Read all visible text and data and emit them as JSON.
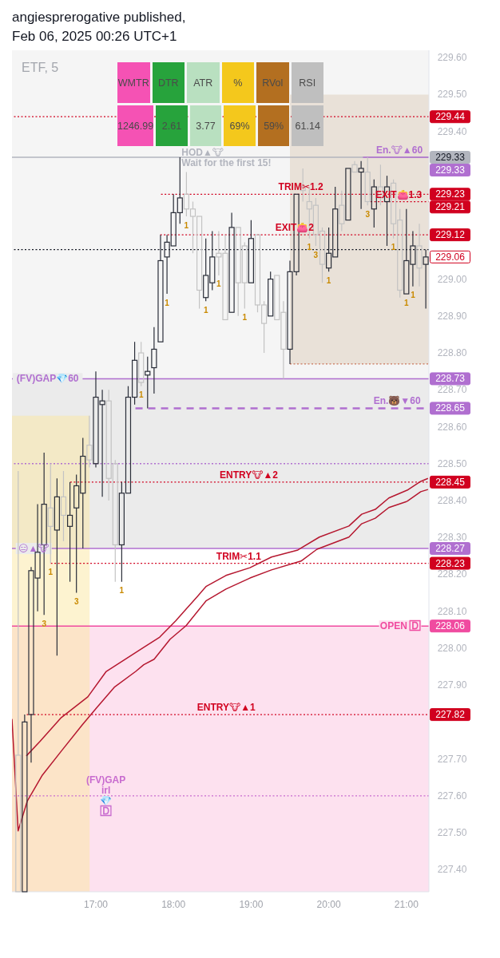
{
  "chart_data": [
    {
      "type": "candlestick",
      "title": "angiesprerogative published,",
      "subtitle": "Feb 06, 2025 00:26 UTC+1",
      "x": [
        16,
        16.0833,
        16.1667,
        16.25,
        16.3333,
        16.4167,
        16.5,
        16.5833,
        16.6667,
        16.75,
        16.8333,
        16.9167,
        17,
        17.0833,
        17.1667,
        17.25,
        17.3333,
        17.4167,
        17.5,
        17.5833,
        17.6667,
        17.75,
        17.8333,
        17.9167,
        18,
        18.0833,
        18.1667,
        18.25,
        18.3333,
        18.4167,
        18.5,
        18.5833,
        18.6667,
        18.75,
        18.8333,
        18.9167,
        19,
        19.0833,
        19.1667,
        19.25,
        19.3333,
        19.4167,
        19.5,
        19.5833,
        19.6667,
        19.75,
        19.8333,
        19.9167,
        20,
        20.0833,
        20.1667,
        20.25,
        20.3333,
        20.4167,
        20.5,
        20.5833,
        20.6667,
        20.75,
        20.8333,
        20.9167,
        21,
        21.0833,
        21.1667,
        21.25
      ],
      "ohlc": [
        [
          227.71,
          228.48,
          227.34,
          227.34
        ],
        [
          227.34,
          227.82,
          227.34,
          227.8
        ],
        [
          227.82,
          228.22,
          227.69,
          228.21
        ],
        [
          228.19,
          228.39,
          228.1,
          228.26
        ],
        [
          228.28,
          228.53,
          228.09,
          228.39
        ],
        [
          228.38,
          228.5,
          228.23,
          228.33
        ],
        [
          228.32,
          228.46,
          227.98,
          228.41
        ],
        [
          228.41,
          228.48,
          228.29,
          228.36
        ],
        [
          228.33,
          228.45,
          228.18,
          228.36
        ],
        [
          228.38,
          228.47,
          228.15,
          228.44
        ],
        [
          228.42,
          228.57,
          228.27,
          228.52
        ],
        [
          228.55,
          228.63,
          228.49,
          228.51
        ],
        [
          228.5,
          228.75,
          228.49,
          228.68
        ],
        [
          228.66,
          228.7,
          228.41,
          228.67
        ],
        [
          228.67,
          228.7,
          228.4,
          228.46
        ],
        [
          228.5,
          228.51,
          228.18,
          228.28
        ],
        [
          228.28,
          228.45,
          228.18,
          228.42
        ],
        [
          228.42,
          228.71,
          228.42,
          228.68
        ],
        [
          228.68,
          228.83,
          228.66,
          228.78
        ],
        [
          228.8,
          228.83,
          228.71,
          228.72
        ],
        [
          228.74,
          228.79,
          228.65,
          228.75
        ],
        [
          228.76,
          228.87,
          228.69,
          228.81
        ],
        [
          228.83,
          229.12,
          228.83,
          229.05
        ],
        [
          229.06,
          229.12,
          228.96,
          229.1
        ],
        [
          229.09,
          229.23,
          229.09,
          229.18
        ],
        [
          229.18,
          229.33,
          229.15,
          229.22
        ],
        [
          229.23,
          229.29,
          229.17,
          229.19
        ],
        [
          229.19,
          229.21,
          229.07,
          229.17
        ],
        [
          229.17,
          229.17,
          228.92,
          228.97
        ],
        [
          228.95,
          229.11,
          228.94,
          229.01
        ],
        [
          228.99,
          229.13,
          228.97,
          229.06
        ],
        [
          229.07,
          229.13,
          229.01,
          229.06
        ],
        [
          229.07,
          229.12,
          228.89,
          228.89
        ],
        [
          228.91,
          229.18,
          228.91,
          229.14
        ],
        [
          229.14,
          229.14,
          228.9,
          228.99
        ],
        [
          229.09,
          229.1,
          228.92,
          228.99
        ],
        [
          228.99,
          229.16,
          228.99,
          229.11
        ],
        [
          229.12,
          229.12,
          228.91,
          228.93
        ],
        [
          228.93,
          228.94,
          228.8,
          228.88
        ],
        [
          228.9,
          229.02,
          228.9,
          229
        ],
        [
          229.01,
          229.01,
          228.89,
          228.89
        ],
        [
          228.91,
          228.94,
          228.73,
          228.81
        ],
        [
          228.81,
          229.05,
          228.77,
          229.02
        ],
        [
          229.02,
          229.23,
          229.01,
          229.23
        ],
        [
          229.25,
          229.3,
          229.21,
          229.24
        ],
        [
          229.21,
          229.25,
          229.11,
          229.19
        ],
        [
          229.2,
          229.22,
          229.09,
          229.12
        ],
        [
          229.13,
          229.14,
          228.99,
          229.04
        ],
        [
          229.03,
          229.14,
          229.02,
          229.07
        ],
        [
          229.06,
          229.25,
          229.06,
          229.19
        ],
        [
          229.2,
          229.24,
          229.13,
          229.15
        ],
        [
          229.16,
          229.3,
          229.16,
          229.3
        ],
        [
          229.31,
          229.32,
          229.29,
          229.29
        ],
        [
          229.29,
          229.32,
          229.19,
          229.3
        ],
        [
          229.29,
          229.33,
          229.2,
          229.21
        ],
        [
          229.19,
          229.27,
          229.14,
          229.25
        ],
        [
          229.25,
          229.31,
          229.2,
          229.22
        ],
        [
          229.21,
          229.28,
          229.09,
          229.25
        ],
        [
          229.26,
          229.27,
          229.11,
          229.15
        ],
        [
          229.16,
          229.19,
          228.95,
          228.97
        ],
        [
          228.96,
          229.19,
          228.96,
          229.05
        ],
        [
          229.04,
          229.13,
          228.98,
          229.09
        ],
        [
          229.09,
          229.15,
          228.98,
          229.03
        ],
        [
          229.04,
          229.08,
          228.92,
          229.06
        ]
      ],
      "colors": [
        "#c3c3c3",
        "#2a2e39",
        "#2a2e39",
        "#2a2e39",
        "#2a2e39",
        "#c3c3c3",
        "#2a2e39",
        "#c3c3c3",
        "#2a2e39",
        "#2a2e39",
        "#2a2e39",
        "#c3c3c3",
        "#2a2e39",
        "#2a2e39",
        "#c3c3c3",
        "#c3c3c3",
        "#2a2e39",
        "#2a2e39",
        "#2a2e39",
        "#c3c3c3",
        "#2a2e39",
        "#2a2e39",
        "#2a2e39",
        "#2a2e39",
        "#2a2e39",
        "#2a2e39",
        "#c3c3c3",
        "#c3c3c3",
        "#c3c3c3",
        "#2a2e39",
        "#2a2e39",
        "#c3c3c3",
        "#c3c3c3",
        "#2a2e39",
        "#c3c3c3",
        "#c3c3c3",
        "#2a2e39",
        "#c3c3c3",
        "#c3c3c3",
        "#2a2e39",
        "#c3c3c3",
        "#c3c3c3",
        "#2a2e39",
        "#2a2e39",
        "#c3c3c3",
        "#c3c3c3",
        "#c3c3c3",
        "#c3c3c3",
        "#2a2e39",
        "#2a2e39",
        "#c3c3c3",
        "#2a2e39",
        "#c3c3c3",
        "#2a2e39",
        "#c3c3c3",
        "#2a2e39",
        "#c3c3c3",
        "#2a2e39",
        "#c3c3c3",
        "#c3c3c3",
        "#2a2e39",
        "#2a2e39",
        "#c3c3c3",
        "#2a2e39"
      ],
      "series": [
        {
          "type": "area",
          "color": "#fbe7a1",
          "x": [
            15.92,
            16.92
          ],
          "values": [
            228.63,
            228.63
          ]
        },
        {
          "type": "area",
          "color": "#d8c2ac",
          "x": [
            19.5,
            21.29
          ],
          "values": [
            null,
            null
          ],
          "lower": [
            228.77,
            228.77
          ],
          "upper": [
            229.5,
            229.5
          ]
        },
        {
          "type": "line",
          "color": "#c9765a",
          "line_style": "dotted",
          "x": [
            19.5,
            21.29
          ],
          "values": [
            228.77,
            228.77
          ]
        },
        {
          "type": "line",
          "color": "#b5172f",
          "x": [
            16.105,
            16.28,
            16.555,
            16.897,
            17.134,
            17.617,
            17.823,
            18.028,
            18.303,
            18.419,
            18.676,
            18.985,
            19.262,
            19.602,
            19.879,
            20.26,
            20.424,
            20.599,
            20.774,
            21.01,
            21.185,
            21.278
          ],
          "values": [
            227.708,
            227.747,
            227.812,
            227.868,
            227.937,
            228.002,
            228.03,
            228.074,
            228.139,
            228.167,
            228.197,
            228.218,
            228.247,
            228.266,
            228.301,
            228.331,
            228.363,
            228.376,
            228.407,
            228.428,
            228.452,
            228.46
          ]
        },
        {
          "type": "line",
          "color": "#b5172f",
          "x": [
            15.92,
            15.999,
            16.116,
            16.311,
            16.555,
            16.825,
            17,
            17.237,
            17.514,
            17.617,
            17.751,
            17.956,
            18.162,
            18.419,
            18.676,
            18.985,
            19.262,
            19.643,
            19.848,
            20.26,
            20.424,
            20.599,
            20.774,
            21.01,
            21.185,
            21.278
          ],
          "values": [
            227.808,
            227.505,
            227.585,
            227.656,
            227.721,
            227.792,
            227.836,
            227.894,
            227.937,
            227.955,
            227.97,
            228.024,
            228.061,
            228.128,
            228.16,
            228.19,
            228.212,
            228.236,
            228.268,
            228.301,
            228.337,
            228.352,
            228.381,
            228.398,
            228.424,
            228.43
          ]
        },
        {
          "type": "line",
          "color": "#b06fd0",
          "line_style": "solid",
          "x": [
            20.44,
            21.29
          ],
          "values": [
            229.33,
            229.33
          ],
          "value_labels": [
            null,
            "229.33"
          ]
        },
        {
          "type": "line",
          "color": "#d1001f",
          "line_style": "dotted",
          "x": [
            17.84,
            21.29
          ],
          "values": [
            229.23,
            229.23
          ],
          "value_labels": [
            null,
            "229.23"
          ]
        },
        {
          "type": "line",
          "color": "#d1001f",
          "line_style": "dotted",
          "x": [
            20.54,
            21.29
          ],
          "values": [
            229.21,
            229.21
          ],
          "value_labels": [
            null,
            "229.21"
          ]
        },
        {
          "type": "line",
          "color": "#d1001f",
          "line_style": "dotted",
          "x": [
            17.83,
            21.29
          ],
          "values": [
            229.12,
            229.12
          ],
          "value_labels": [
            null,
            "229.12"
          ]
        },
        {
          "type": "line",
          "color": "#b06fd0",
          "line_style": "dashed",
          "x": [
            17.51,
            21.29
          ],
          "values": [
            228.65,
            228.65
          ],
          "value_labels": [
            null,
            "228.65"
          ]
        },
        {
          "type": "line",
          "color": "#d1001f",
          "line_style": "dotted",
          "x": [
            16.67,
            21.29
          ],
          "values": [
            228.45,
            228.45
          ],
          "value_labels": [
            null,
            "228.45"
          ]
        },
        {
          "type": "line",
          "color": "#d1001f",
          "line_style": "dotted",
          "x": [
            16.42,
            21.29
          ],
          "values": [
            228.23,
            228.23
          ],
          "value_labels": [
            null,
            "228.23"
          ]
        },
        {
          "type": "line",
          "color": "#d1001f",
          "line_style": "dotted",
          "x": [
            16.11,
            21.29
          ],
          "values": [
            227.82,
            227.82
          ],
          "value_labels": [
            null,
            "227.82"
          ]
        }
      ],
      "ref_lines": [
        {
          "axis": "y",
          "value": 229.44,
          "label": "229.44",
          "color": "#d1001f",
          "line_style": "dotted"
        },
        {
          "axis": "y",
          "value": 229.33,
          "label": "229.33",
          "color": "#b2b5be",
          "line_style": "solid"
        },
        {
          "axis": "y",
          "value": 229.08,
          "color": "#131722",
          "line_style": "dotted"
        },
        {
          "axis": "y",
          "value": 228.73,
          "label": "228.73",
          "color": "#b06fd0",
          "line_style": "solid"
        },
        {
          "axis": "y",
          "value": 228.5,
          "color": "#b06fd0",
          "line_style": "dotted"
        },
        {
          "axis": "y",
          "value": 228.27,
          "label": "228.27",
          "color": "#b06fd0",
          "line_style": "solid"
        },
        {
          "axis": "y",
          "value": 228.06,
          "label": "228.06",
          "color": "#f04ba0",
          "line_style": "solid"
        },
        {
          "axis": "y",
          "value": 227.6,
          "color": "#c86bcf",
          "line_style": "dotted"
        }
      ],
      "bands": [
        {
          "axis": "y",
          "from": 228.73,
          "to": 229.62,
          "color": "#f5f5f5"
        },
        {
          "axis": "y",
          "from": 228.27,
          "to": 228.73,
          "color": "#ebebeb"
        },
        {
          "axis": "y",
          "from": 227.34,
          "to": 228.06,
          "color": "#fde1ef"
        }
      ],
      "annotations": [
        "ETF, 5",
        {
          "text": "HOD▲🐮\nWait for the first 15!",
          "x": 18.0833,
          "y": 229.33
        },
        {
          "text": "En.🐮▲60",
          "x": 20.91,
          "y": 229.33
        },
        {
          "text": "TRIM✂1.2",
          "x": 19.64,
          "y": 229.23
        },
        {
          "text": "EXIT👛1.3",
          "x": 20.9,
          "y": 229.21
        },
        {
          "text": "EXIT👛2",
          "x": 19.56,
          "y": 229.12
        },
        {
          "text": "229.06",
          "x": 21.25,
          "y": 229.06
        },
        {
          "text": "(FV)GAP💎60",
          "x": 16.38,
          "y": 228.73
        },
        {
          "text": "En.🐻▼60",
          "x": 20.88,
          "y": 228.65
        },
        {
          "text": "ENTRY🐮▲2",
          "x": 18.97,
          "y": 228.45
        },
        {
          "text": "😑▲🐮",
          "x": 16.2,
          "y": 228.27
        },
        {
          "text": "TRIM✂1.1",
          "x": 18.84,
          "y": 228.23
        },
        {
          "text": "OPEN 🄳",
          "x": 20.92,
          "y": 228.06
        },
        {
          "text": "ENTRY🐮▲1",
          "x": 18.68,
          "y": 227.82
        },
        {
          "text": "(FV)GAP\nirl\n💎\n🄳",
          "x": 17.13,
          "y": 227.6
        },
        {
          "text": "1",
          "x": 16.4167,
          "y": 228.23
        },
        {
          "text": "1",
          "x": 17.3333,
          "y": 228.18
        },
        {
          "text": "1",
          "x": 17.5833,
          "y": 228.71
        },
        {
          "text": "1",
          "x": 17.9167,
          "y": 228.96
        },
        {
          "text": "1",
          "x": 18.1667,
          "y": 229.17
        },
        {
          "text": "1",
          "x": 18.4167,
          "y": 228.94
        },
        {
          "text": "1",
          "x": 18.5833,
          "y": 229.01
        },
        {
          "text": "1",
          "x": 18.9167,
          "y": 228.92
        },
        {
          "text": "1",
          "x": 19.75,
          "y": 229.11
        },
        {
          "text": "1",
          "x": 20,
          "y": 229.02
        },
        {
          "text": "1",
          "x": 20.8333,
          "y": 229.11
        },
        {
          "text": "1",
          "x": 21,
          "y": 228.96
        },
        {
          "text": "1",
          "x": 21.0833,
          "y": 228.98
        },
        {
          "text": "3",
          "x": 16.3333,
          "y": 228.09
        },
        {
          "text": "3",
          "x": 16.75,
          "y": 228.15
        },
        {
          "text": "3",
          "x": 19.8333,
          "y": 229.09
        },
        {
          "text": "3",
          "x": 20.5,
          "y": 229.2
        }
      ],
      "xlim": [
        15.92,
        21.29
      ],
      "xticks": [
        {
          "value": 17,
          "label": "17:00"
        },
        {
          "value": 18,
          "label": "18:00"
        },
        {
          "value": 19,
          "label": "19:00"
        },
        {
          "value": 20,
          "label": "20:00"
        },
        {
          "value": 21,
          "label": "21:00"
        }
      ],
      "ylim": [
        227.34,
        229.62
      ],
      "yticks": [
        {
          "value": 229.6,
          "label": "229.60"
        },
        {
          "value": 229.5,
          "label": "229.50"
        },
        {
          "value": 229.4,
          "label": "229.40"
        },
        {
          "value": 229,
          "label": "229.00"
        },
        {
          "value": 228.9,
          "label": "228.90"
        },
        {
          "value": 228.8,
          "label": "228.80"
        },
        {
          "value": 228.7,
          "label": "228.70"
        },
        {
          "value": 228.6,
          "label": "228.60"
        },
        {
          "value": 228.5,
          "label": "228.50"
        },
        {
          "value": 228.4,
          "label": "228.40"
        },
        {
          "value": 228.3,
          "label": "228.30"
        },
        {
          "value": 228.2,
          "label": "228.20"
        },
        {
          "value": 228.1,
          "label": "228.10"
        },
        {
          "value": 228,
          "label": "228.00"
        },
        {
          "value": 227.9,
          "label": "227.90"
        },
        {
          "value": 227.7,
          "label": "227.70"
        },
        {
          "value": 227.6,
          "label": "227.60"
        },
        {
          "value": 227.5,
          "label": "227.50"
        },
        {
          "value": 227.4,
          "label": "227.40"
        }
      ]
    },
    {
      "type": "other",
      "categories": [
        "WMTR",
        "DTR",
        "ATR",
        "%",
        "RVol",
        "RSI"
      ],
      "values": [
        1246.99,
        2.61,
        3.77,
        69,
        59,
        61.14
      ],
      "value_labels": [
        "1246.99",
        "2.61",
        "3.77",
        "69%",
        "59%",
        "61.14"
      ],
      "colors": [
        "#f552b4",
        "#27a33c",
        "#b9e0c0",
        "#f4c81c",
        "#b36f20",
        "#bfbfbf"
      ]
    }
  ]
}
